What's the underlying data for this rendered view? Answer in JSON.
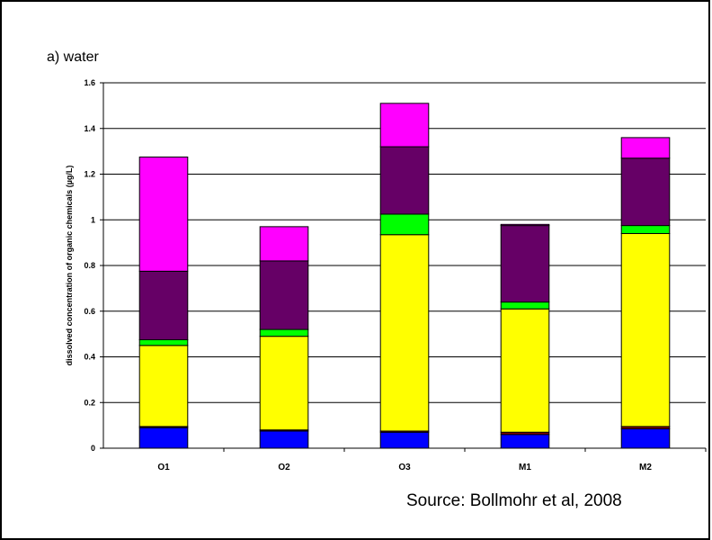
{
  "chart_data": {
    "type": "bar",
    "stacked": true,
    "title": "a) water",
    "xlabel": "",
    "ylabel": "dissolved concentration of organic chemicals (µg/L)",
    "ylim": [
      0,
      1.6
    ],
    "yticks": [
      "0",
      "0.2",
      "0.4",
      "0.6",
      "0.8",
      "1",
      "1.2",
      "1.4",
      "1.6"
    ],
    "grid": true,
    "legend": "none",
    "categories": [
      "O1",
      "O2",
      "O3",
      "M1",
      "M2"
    ],
    "series": [
      {
        "color": "#0000ff",
        "values": [
          0.09,
          0.075,
          0.07,
          0.06,
          0.085
        ]
      },
      {
        "color": "#800000",
        "values": [
          0.005,
          0.005,
          0.005,
          0.01,
          0.01
        ]
      },
      {
        "color": "#ffff00",
        "values": [
          0.355,
          0.41,
          0.86,
          0.54,
          0.845
        ]
      },
      {
        "color": "#00ff00",
        "values": [
          0.025,
          0.03,
          0.09,
          0.03,
          0.035
        ]
      },
      {
        "color": "#660066",
        "values": [
          0.3,
          0.3,
          0.295,
          0.335,
          0.295
        ]
      },
      {
        "color": "#ff00ff",
        "values": [
          0.5,
          0.15,
          0.19,
          0.005,
          0.09
        ]
      }
    ]
  },
  "source": "Source: Bollmohr et al, 2008"
}
